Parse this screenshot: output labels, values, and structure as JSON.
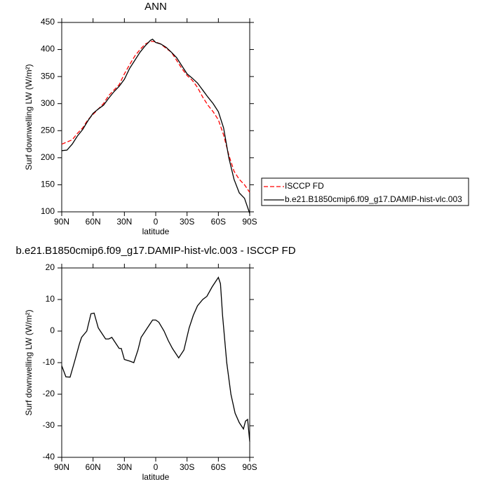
{
  "chart_data": [
    {
      "type": "line",
      "title": "ANN",
      "xlabel": "latitude",
      "ylabel": "Surf downwelling LW (W/m²)",
      "xlim": [
        90,
        -90
      ],
      "xticks": [
        {
          "value": 90,
          "label": "90N"
        },
        {
          "value": 60,
          "label": "60N"
        },
        {
          "value": 30,
          "label": "30N"
        },
        0,
        {
          "value": -30,
          "label": "30S"
        },
        {
          "value": -60,
          "label": "60S"
        },
        {
          "value": -90,
          "label": "90S"
        }
      ],
      "ylim": [
        100,
        450
      ],
      "yticks": [
        100,
        150,
        200,
        250,
        300,
        350,
        400,
        450
      ],
      "legend": "outside-right",
      "x": [
        90,
        85,
        80,
        75,
        70,
        65,
        60,
        55,
        50,
        45,
        40,
        35,
        30,
        25,
        20,
        15,
        10,
        5,
        3,
        0,
        -5,
        -10,
        -15,
        -20,
        -25,
        -30,
        -35,
        -40,
        -45,
        -50,
        -55,
        -60,
        -65,
        -70,
        -75,
        -80,
        -85,
        -90
      ],
      "series": [
        {
          "name": "ISCCP FD",
          "color": "#ff0000",
          "dashed": true,
          "values": [
            225,
            229,
            233,
            245,
            255,
            270,
            280,
            290,
            300,
            315,
            325,
            335,
            355,
            372,
            388,
            400,
            410,
            415,
            415,
            414,
            410,
            402,
            395,
            380,
            365,
            352,
            343,
            330,
            312,
            297,
            285,
            270,
            242,
            205,
            175,
            160,
            150,
            136
          ]
        },
        {
          "name": "b.e21.B1850cmip6.f09_g17.DAMIP-hist-vlc.003",
          "color": "#000000",
          "dashed": false,
          "values": [
            213,
            214,
            225,
            240,
            252,
            268,
            282,
            290,
            297,
            310,
            322,
            332,
            345,
            365,
            380,
            395,
            407,
            417,
            419,
            413,
            410,
            404,
            395,
            385,
            370,
            355,
            347,
            338,
            325,
            312,
            300,
            285,
            255,
            200,
            160,
            135,
            125,
            97
          ]
        }
      ]
    },
    {
      "type": "line",
      "title": "b.e21.B1850cmip6.f09_g17.DAMIP-hist-vlc.003 - ISCCP FD",
      "xlabel": "latitude",
      "ylabel": "Surf downwelling LW (W/m²)",
      "xlim": [
        90,
        -90
      ],
      "xticks": [
        {
          "value": 90,
          "label": "90N"
        },
        {
          "value": 60,
          "label": "60N"
        },
        {
          "value": 30,
          "label": "30N"
        },
        0,
        {
          "value": -30,
          "label": "30S"
        },
        {
          "value": -60,
          "label": "60S"
        },
        {
          "value": -90,
          "label": "90S"
        }
      ],
      "ylim": [
        -40,
        20
      ],
      "yticks": [
        -40,
        -30,
        -20,
        -10,
        0,
        10,
        20
      ],
      "x": [
        90,
        86,
        82,
        78,
        73,
        71,
        66,
        62,
        59,
        55,
        52,
        48,
        45,
        42,
        38,
        35,
        33,
        30,
        25,
        21,
        17,
        14,
        6,
        3,
        0,
        -3,
        -8,
        -12,
        -16,
        -22,
        -27,
        -32,
        -36,
        -40,
        -45,
        -49,
        -54,
        -58,
        -60,
        -62,
        -64,
        -68,
        -72,
        -76,
        -80,
        -84,
        -86,
        -88,
        -90
      ],
      "series": [
        {
          "color": "#000000",
          "dashed": false,
          "values": [
            -11,
            -14.5,
            -14.6,
            -10,
            -4,
            -2,
            0,
            5.5,
            5.7,
            1,
            -0.5,
            -2.5,
            -2.5,
            -2,
            -4,
            -5.5,
            -5.5,
            -9,
            -9.5,
            -10,
            -6,
            -2,
            2,
            3.5,
            3.5,
            2.8,
            0,
            -3,
            -5.5,
            -8.5,
            -6,
            1,
            5,
            8,
            10,
            11,
            14,
            16,
            17,
            15,
            5,
            -10,
            -20,
            -26,
            -29,
            -31,
            -28.5,
            -28,
            -35
          ]
        }
      ]
    }
  ]
}
